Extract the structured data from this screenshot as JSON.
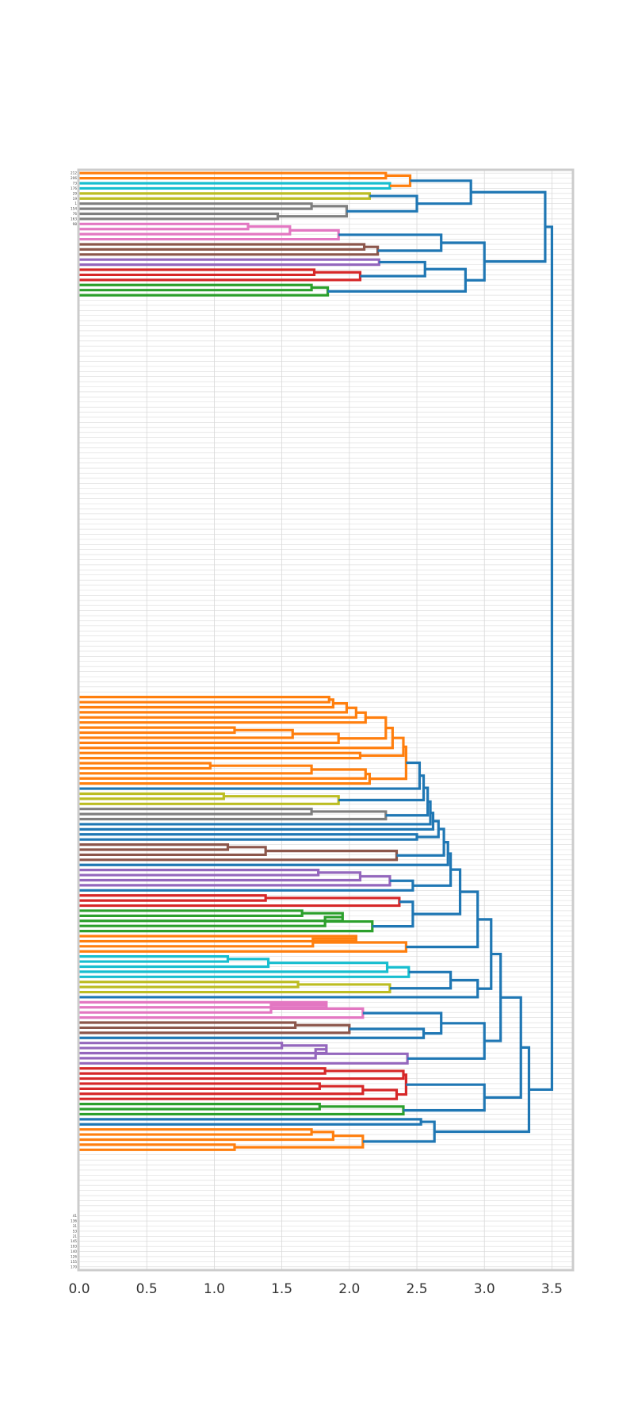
{
  "chart_data": {
    "type": "dendrogram",
    "orientation": "horizontal",
    "title": "",
    "xlabel": "",
    "ylabel": "",
    "xlim": [
      0.0,
      3.65
    ],
    "xticks": [
      0.0,
      0.5,
      1.0,
      1.5,
      2.0,
      2.5,
      3.0,
      3.5
    ],
    "xtick_labels": [
      "0.0",
      "0.5",
      "1.0",
      "1.5",
      "2.0",
      "2.5",
      "3.0",
      "3.5"
    ],
    "grid": true,
    "leaf_count": 216,
    "top_labels": [
      "212",
      "206",
      "73",
      "176",
      "29",
      "19",
      "1",
      "154",
      "76",
      "163",
      "98"
    ],
    "bottom_labels": [
      "41",
      "136",
      "31",
      "53",
      "21",
      "145",
      "193",
      "140",
      "126",
      "155",
      "170"
    ],
    "colors": {
      "orange": "#ff7f0e",
      "blue": "#1f77b4",
      "green": "#2ca02c",
      "red": "#d62728",
      "purple": "#9467bd",
      "brown": "#8c564b",
      "pink": "#e377c2",
      "gray": "#7f7f7f",
      "olive": "#bcbd22",
      "cyan": "#17becf",
      "grid": "#d9d9d9",
      "frame": "#cccccc"
    },
    "link_color": "blue",
    "merges": [
      {
        "id": "m1",
        "a": [
          0
        ],
        "b": [
          1
        ],
        "h": 2.27,
        "color": "orange"
      },
      {
        "id": "m2",
        "a": [
          2
        ],
        "b": [
          3
        ],
        "h": 2.3,
        "color": "cyan"
      },
      {
        "id": "m3",
        "a": [
          "m1"
        ],
        "b": [
          "m2"
        ],
        "h": 2.45,
        "color": "orange"
      },
      {
        "id": "m4",
        "a": [
          4
        ],
        "b": [
          5
        ],
        "h": 2.15,
        "color": "olive"
      },
      {
        "id": "m5",
        "a": [
          6
        ],
        "b": [
          7
        ],
        "h": 1.72,
        "color": "gray"
      },
      {
        "id": "m6",
        "a": [
          8
        ],
        "b": [
          9
        ],
        "h": 1.47,
        "color": "gray"
      },
      {
        "id": "m7",
        "a": [
          "m5"
        ],
        "b": [
          "m6"
        ],
        "h": 1.98,
        "color": "gray"
      },
      {
        "id": "m8",
        "a": [
          "m4"
        ],
        "b": [
          "m7"
        ],
        "h": 2.5,
        "color": "blue"
      },
      {
        "id": "m9",
        "a": [
          "m3"
        ],
        "b": [
          "m8"
        ],
        "h": 2.9,
        "color": "blue"
      },
      {
        "id": "m10",
        "a": [
          10
        ],
        "b": [
          11
        ],
        "h": 1.25,
        "color": "pink"
      },
      {
        "id": "m11",
        "a": [
          "m10"
        ],
        "b": [
          12
        ],
        "h": 1.56,
        "color": "pink"
      },
      {
        "id": "m12",
        "a": [
          "m11"
        ],
        "b": [
          13
        ],
        "h": 1.92,
        "color": "pink"
      },
      {
        "id": "m13",
        "a": [
          14
        ],
        "b": [
          15
        ],
        "h": 2.11,
        "color": "brown"
      },
      {
        "id": "m14",
        "a": [
          "m13"
        ],
        "b": [
          16
        ],
        "h": 2.21,
        "color": "brown"
      },
      {
        "id": "m15",
        "a": [
          "m12"
        ],
        "b": [
          "m14"
        ],
        "h": 2.68,
        "color": "blue"
      },
      {
        "id": "m16",
        "a": [
          17
        ],
        "b": [
          18
        ],
        "h": 2.22,
        "color": "purple"
      },
      {
        "id": "m17",
        "a": [
          19
        ],
        "b": [
          20
        ],
        "h": 1.74,
        "color": "red"
      },
      {
        "id": "m18",
        "a": [
          "m17"
        ],
        "b": [
          21
        ],
        "h": 2.08,
        "color": "red"
      },
      {
        "id": "m19",
        "a": [
          "m16"
        ],
        "b": [
          "m18"
        ],
        "h": 2.56,
        "color": "blue"
      },
      {
        "id": "m20",
        "a": [
          22
        ],
        "b": [
          23
        ],
        "h": 1.72,
        "color": "green"
      },
      {
        "id": "m21",
        "a": [
          "m20"
        ],
        "b": [
          24
        ],
        "h": 1.84,
        "color": "green"
      },
      {
        "id": "m22",
        "a": [
          "m19"
        ],
        "b": [
          "m21"
        ],
        "h": 2.86,
        "color": "blue"
      },
      {
        "id": "m23",
        "a": [
          "m15"
        ],
        "b": [
          "m22"
        ],
        "h": 3.0,
        "color": "blue"
      },
      {
        "id": "m24",
        "a": [
          "m9"
        ],
        "b": [
          "m23"
        ],
        "h": 3.45,
        "color": "blue"
      },
      {
        "id": "m25",
        "a": [
          103
        ],
        "b": [
          104
        ],
        "h": 1.85,
        "color": "orange"
      },
      {
        "id": "m26",
        "a": [
          "m25"
        ],
        "b": [
          105
        ],
        "h": 1.88,
        "color": "orange"
      },
      {
        "id": "m27",
        "a": [
          "m26"
        ],
        "b": [
          106
        ],
        "h": 1.98,
        "color": "orange"
      },
      {
        "id": "m28",
        "a": [
          "m27"
        ],
        "b": [
          107
        ],
        "h": 2.05,
        "color": "orange"
      },
      {
        "id": "m29",
        "a": [
          "m28"
        ],
        "b": [
          108
        ],
        "h": 2.12,
        "color": "orange"
      },
      {
        "id": "m30",
        "a": [
          109
        ],
        "b": [
          110
        ],
        "h": 1.15,
        "color": "orange"
      },
      {
        "id": "m31",
        "a": [
          "m30"
        ],
        "b": [
          111
        ],
        "h": 1.58,
        "color": "orange"
      },
      {
        "id": "m32",
        "a": [
          "m31"
        ],
        "b": [
          112
        ],
        "h": 1.92,
        "color": "orange"
      },
      {
        "id": "m33",
        "a": [
          "m29"
        ],
        "b": [
          "m32"
        ],
        "h": 2.27,
        "color": "orange"
      },
      {
        "id": "m34",
        "a": [
          "m33"
        ],
        "b": [
          113
        ],
        "h": 2.32,
        "color": "orange"
      },
      {
        "id": "m35",
        "a": [
          114
        ],
        "b": [
          115
        ],
        "h": 2.08,
        "color": "orange"
      },
      {
        "id": "m36",
        "a": [
          "m34"
        ],
        "b": [
          "m35"
        ],
        "h": 2.4,
        "color": "orange"
      },
      {
        "id": "m37",
        "a": [
          116
        ],
        "b": [
          117
        ],
        "h": 0.97,
        "color": "orange"
      },
      {
        "id": "m38",
        "a": [
          "m37"
        ],
        "b": [
          118
        ],
        "h": 1.72,
        "color": "orange"
      },
      {
        "id": "m39",
        "a": [
          "m38"
        ],
        "b": [
          119
        ],
        "h": 2.12,
        "color": "orange"
      },
      {
        "id": "m40",
        "a": [
          "m39"
        ],
        "b": [
          120
        ],
        "h": 2.15,
        "color": "orange"
      },
      {
        "id": "m41",
        "a": [
          "m36"
        ],
        "b": [
          "m40"
        ],
        "h": 2.42,
        "color": "orange"
      },
      {
        "id": "m42",
        "a": [
          "m41"
        ],
        "b": [
          121
        ],
        "h": 2.52,
        "color": "blue"
      },
      {
        "id": "m43",
        "a": [
          122
        ],
        "b": [
          123
        ],
        "h": 1.07,
        "color": "olive"
      },
      {
        "id": "m44",
        "a": [
          "m43"
        ],
        "b": [
          124
        ],
        "h": 1.92,
        "color": "olive"
      },
      {
        "id": "m45",
        "a": [
          "m42"
        ],
        "b": [
          "m44"
        ],
        "h": 2.55,
        "color": "blue"
      },
      {
        "id": "m46",
        "a": [
          125
        ],
        "b": [
          126
        ],
        "h": 1.72,
        "color": "gray"
      },
      {
        "id": "m47",
        "a": [
          "m46"
        ],
        "b": [
          127
        ],
        "h": 2.27,
        "color": "gray"
      },
      {
        "id": "m48",
        "a": [
          "m45"
        ],
        "b": [
          "m47"
        ],
        "h": 2.58,
        "color": "blue"
      },
      {
        "id": "m49",
        "a": [
          "m48"
        ],
        "b": [
          128
        ],
        "h": 2.6,
        "color": "blue"
      },
      {
        "id": "m50",
        "a": [
          "m49"
        ],
        "b": [
          129
        ],
        "h": 2.62,
        "color": "blue"
      },
      {
        "id": "m51",
        "a": [
          130
        ],
        "b": [
          131
        ],
        "h": 2.5,
        "color": "blue"
      },
      {
        "id": "m52",
        "a": [
          "m50"
        ],
        "b": [
          "m51"
        ],
        "h": 2.66,
        "color": "blue"
      },
      {
        "id": "m53",
        "a": [
          132
        ],
        "b": [
          133
        ],
        "h": 1.1,
        "color": "brown"
      },
      {
        "id": "m54",
        "a": [
          "m53"
        ],
        "b": [
          134
        ],
        "h": 1.38,
        "color": "brown"
      },
      {
        "id": "m55",
        "a": [
          "m54"
        ],
        "b": [
          135
        ],
        "h": 2.35,
        "color": "brown"
      },
      {
        "id": "m56",
        "a": [
          "m52"
        ],
        "b": [
          "m55"
        ],
        "h": 2.7,
        "color": "blue"
      },
      {
        "id": "m57",
        "a": [
          "m56"
        ],
        "b": [
          136
        ],
        "h": 2.73,
        "color": "blue"
      },
      {
        "id": "m58",
        "a": [
          137
        ],
        "b": [
          138
        ],
        "h": 1.77,
        "color": "purple"
      },
      {
        "id": "m59",
        "a": [
          "m58"
        ],
        "b": [
          139
        ],
        "h": 2.08,
        "color": "purple"
      },
      {
        "id": "m60",
        "a": [
          "m59"
        ],
        "b": [
          140
        ],
        "h": 2.3,
        "color": "purple"
      },
      {
        "id": "m61",
        "a": [
          "m60"
        ],
        "b": [
          141
        ],
        "h": 2.47,
        "color": "blue"
      },
      {
        "id": "m62",
        "a": [
          "m57"
        ],
        "b": [
          "m61"
        ],
        "h": 2.75,
        "color": "blue"
      },
      {
        "id": "m63",
        "a": [
          142
        ],
        "b": [
          143
        ],
        "h": 1.38,
        "color": "red"
      },
      {
        "id": "m64",
        "a": [
          "m63"
        ],
        "b": [
          144
        ],
        "h": 2.37,
        "color": "red"
      },
      {
        "id": "m65",
        "a": [
          145
        ],
        "b": [
          146
        ],
        "h": 1.65,
        "color": "green"
      },
      {
        "id": "m66",
        "a": [
          "m65"
        ],
        "b": [
          147
        ],
        "h": 1.95,
        "color": "green"
      },
      {
        "id": "m67",
        "a": [
          "m66"
        ],
        "b": [
          148
        ],
        "h": 1.82,
        "color": "green"
      },
      {
        "id": "m68",
        "a": [
          "m67"
        ],
        "b": [
          149
        ],
        "h": 2.17,
        "color": "green"
      },
      {
        "id": "m69",
        "a": [
          "m64"
        ],
        "b": [
          "m68"
        ],
        "h": 2.47,
        "color": "blue"
      },
      {
        "id": "m70",
        "a": [
          "m62"
        ],
        "b": [
          "m69"
        ],
        "h": 2.82,
        "color": "blue"
      },
      {
        "id": "m71",
        "a": [
          150
        ],
        "b": [
          151
        ],
        "h": 2.05,
        "color": "orange"
      },
      {
        "id": "m72",
        "a": [
          "m71"
        ],
        "b": [
          152
        ],
        "h": 1.73,
        "color": "orange"
      },
      {
        "id": "m73",
        "a": [
          "m72"
        ],
        "b": [
          153
        ],
        "h": 2.42,
        "color": "orange"
      },
      {
        "id": "m74",
        "a": [
          "m70"
        ],
        "b": [
          "m73"
        ],
        "h": 2.95,
        "color": "blue"
      },
      {
        "id": "m75",
        "a": [
          154
        ],
        "b": [
          155
        ],
        "h": 1.1,
        "color": "cyan"
      },
      {
        "id": "m76",
        "a": [
          "m75"
        ],
        "b": [
          156
        ],
        "h": 1.4,
        "color": "cyan"
      },
      {
        "id": "m77",
        "a": [
          "m76"
        ],
        "b": [
          157
        ],
        "h": 2.28,
        "color": "cyan"
      },
      {
        "id": "m78",
        "a": [
          "m77"
        ],
        "b": [
          158
        ],
        "h": 2.44,
        "color": "cyan"
      },
      {
        "id": "m79",
        "a": [
          159
        ],
        "b": [
          160
        ],
        "h": 1.62,
        "color": "olive"
      },
      {
        "id": "m80",
        "a": [
          "m79"
        ],
        "b": [
          161
        ],
        "h": 2.3,
        "color": "olive"
      },
      {
        "id": "m81",
        "a": [
          "m78"
        ],
        "b": [
          "m80"
        ],
        "h": 2.75,
        "color": "blue"
      },
      {
        "id": "m82",
        "a": [
          "m81"
        ],
        "b": [
          162
        ],
        "h": 2.95,
        "color": "blue"
      },
      {
        "id": "m83",
        "a": [
          "m74"
        ],
        "b": [
          "m82"
        ],
        "h": 3.05,
        "color": "blue"
      },
      {
        "id": "m84",
        "a": [
          163
        ],
        "b": [
          164
        ],
        "h": 1.83,
        "color": "pink"
      },
      {
        "id": "m85",
        "a": [
          "m84"
        ],
        "b": [
          165
        ],
        "h": 1.42,
        "color": "pink"
      },
      {
        "id": "m86",
        "a": [
          "m85"
        ],
        "b": [
          166
        ],
        "h": 2.1,
        "color": "pink"
      },
      {
        "id": "m87",
        "a": [
          167
        ],
        "b": [
          168
        ],
        "h": 1.6,
        "color": "brown"
      },
      {
        "id": "m88",
        "a": [
          "m87"
        ],
        "b": [
          169
        ],
        "h": 2.0,
        "color": "brown"
      },
      {
        "id": "m89",
        "a": [
          "m88"
        ],
        "b": [
          170
        ],
        "h": 2.55,
        "color": "blue"
      },
      {
        "id": "m90",
        "a": [
          "m86"
        ],
        "b": [
          "m89"
        ],
        "h": 2.68,
        "color": "blue"
      },
      {
        "id": "m91",
        "a": [
          171
        ],
        "b": [
          172
        ],
        "h": 1.5,
        "color": "purple"
      },
      {
        "id": "m92",
        "a": [
          "m91"
        ],
        "b": [
          173
        ],
        "h": 1.83,
        "color": "purple"
      },
      {
        "id": "m93",
        "a": [
          "m92"
        ],
        "b": [
          174
        ],
        "h": 1.75,
        "color": "purple"
      },
      {
        "id": "m94",
        "a": [
          "m93"
        ],
        "b": [
          175
        ],
        "h": 2.43,
        "color": "purple"
      },
      {
        "id": "m95",
        "a": [
          "m90"
        ],
        "b": [
          "m94"
        ],
        "h": 3.0,
        "color": "blue"
      },
      {
        "id": "m96",
        "a": [
          "m83"
        ],
        "b": [
          "m95"
        ],
        "h": 3.12,
        "color": "blue"
      },
      {
        "id": "m97",
        "a": [
          176
        ],
        "b": [
          177
        ],
        "h": 1.82,
        "color": "red"
      },
      {
        "id": "m98",
        "a": [
          "m97"
        ],
        "b": [
          178
        ],
        "h": 2.4,
        "color": "red"
      },
      {
        "id": "m99",
        "a": [
          179
        ],
        "b": [
          180
        ],
        "h": 1.78,
        "color": "red"
      },
      {
        "id": "m100",
        "a": [
          "m99"
        ],
        "b": [
          181
        ],
        "h": 2.1,
        "color": "red"
      },
      {
        "id": "m101",
        "a": [
          "m100"
        ],
        "b": [
          182
        ],
        "h": 2.35,
        "color": "red"
      },
      {
        "id": "m102",
        "a": [
          "m98"
        ],
        "b": [
          "m101"
        ],
        "h": 2.42,
        "color": "red"
      },
      {
        "id": "m103",
        "a": [
          183
        ],
        "b": [
          184
        ],
        "h": 1.78,
        "color": "green"
      },
      {
        "id": "m104",
        "a": [
          "m103"
        ],
        "b": [
          185
        ],
        "h": 2.4,
        "color": "green"
      },
      {
        "id": "m105",
        "a": [
          "m102"
        ],
        "b": [
          "m104"
        ],
        "h": 3.0,
        "color": "blue"
      },
      {
        "id": "m106",
        "a": [
          "m96"
        ],
        "b": [
          "m105"
        ],
        "h": 3.27,
        "color": "blue"
      },
      {
        "id": "m107",
        "a": [
          186
        ],
        "b": [
          187
        ],
        "h": 2.53,
        "color": "blue"
      },
      {
        "id": "m108",
        "a": [
          188
        ],
        "b": [
          189
        ],
        "h": 1.72,
        "color": "orange"
      },
      {
        "id": "m109",
        "a": [
          "m108"
        ],
        "b": [
          190
        ],
        "h": 1.88,
        "color": "orange"
      },
      {
        "id": "m110",
        "a": [
          191
        ],
        "b": [
          192
        ],
        "h": 1.15,
        "color": "orange"
      },
      {
        "id": "m111",
        "a": [
          "m109"
        ],
        "b": [
          "m110"
        ],
        "h": 2.1,
        "color": "orange"
      },
      {
        "id": "m112",
        "a": [
          "m107"
        ],
        "b": [
          "m111"
        ],
        "h": 2.63,
        "color": "blue"
      },
      {
        "id": "m113",
        "a": [
          "m106"
        ],
        "b": [
          "m112"
        ],
        "h": 3.33,
        "color": "blue"
      },
      {
        "id": "m114",
        "a": [
          "m24"
        ],
        "b": [
          "m113"
        ],
        "h": 3.5,
        "color": "blue"
      }
    ]
  }
}
